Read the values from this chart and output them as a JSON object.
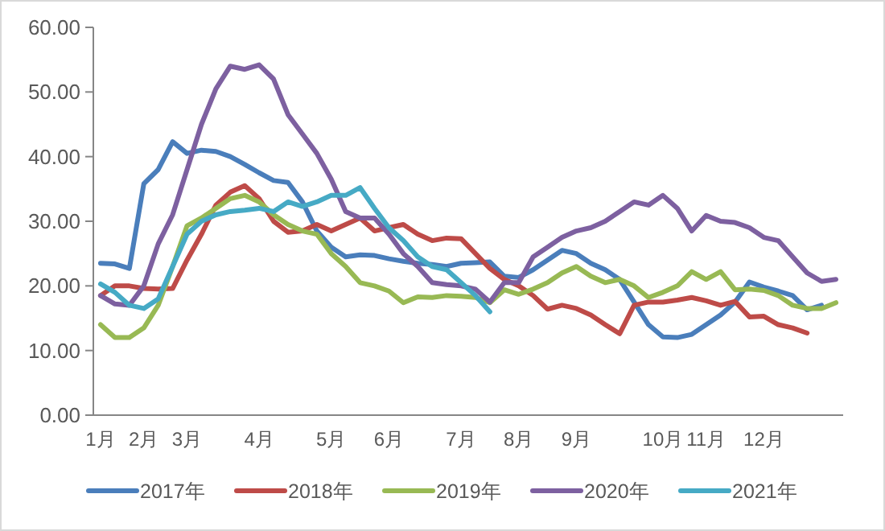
{
  "chart_data": {
    "type": "line",
    "categories": [
      "1月",
      null,
      null,
      "2月",
      null,
      null,
      "3月",
      null,
      null,
      null,
      null,
      "4月",
      null,
      null,
      null,
      null,
      "5月",
      null,
      null,
      null,
      "6月",
      null,
      null,
      null,
      null,
      "7月",
      null,
      null,
      null,
      "8月",
      null,
      null,
      null,
      "9月",
      null,
      null,
      null,
      null,
      null,
      "10月",
      null,
      null,
      "11月",
      null,
      null,
      null,
      "12月",
      null,
      null,
      null,
      null,
      null
    ],
    "series": [
      {
        "name": "2017年",
        "color": "#4a7ebb",
        "values": [
          23.5,
          23.4,
          22.7,
          35.8,
          38,
          42.3,
          40.5,
          41,
          40.8,
          40,
          38.8,
          37.5,
          36.3,
          36,
          33,
          28.5,
          26,
          24.5,
          24.8,
          24.7,
          24.2,
          23.8,
          23.5,
          23.3,
          23,
          23.5,
          23.6,
          23.7,
          21.5,
          21.3,
          22.5,
          24,
          25.5,
          25,
          23.5,
          22.5,
          21,
          17.5,
          14,
          12.1,
          12,
          12.5,
          14,
          15.5,
          17.5,
          20.6,
          19.8,
          19.2,
          18.5,
          16.3,
          17,
          null
        ]
      },
      {
        "name": "2018年",
        "color": "#be4b48",
        "values": [
          18.5,
          20,
          20,
          19.6,
          19.5,
          19.6,
          24,
          28,
          32.5,
          34.5,
          35.5,
          33.5,
          30,
          28.3,
          28.5,
          29.5,
          28.5,
          29.5,
          30.5,
          28.5,
          29,
          29.5,
          28,
          27,
          27.4,
          27.3,
          25,
          22.7,
          21,
          20,
          18.5,
          16.4,
          17,
          16.5,
          15.5,
          14,
          12.6,
          17,
          17.5,
          17.5,
          17.8,
          18.2,
          17.7,
          17,
          17.6,
          15.2,
          15.3,
          14,
          13.5,
          12.7,
          null,
          null
        ]
      },
      {
        "name": "2019年",
        "color": "#98b954",
        "values": [
          14,
          12,
          12,
          13.5,
          17,
          23,
          29.3,
          30.5,
          32,
          33.5,
          34,
          33,
          31,
          29.5,
          28.5,
          28,
          25,
          23,
          20.5,
          20,
          19.2,
          17.4,
          18.3,
          18.2,
          18.5,
          18.4,
          18.2,
          17.4,
          19.4,
          18.7,
          19.5,
          20.5,
          22,
          23,
          21.5,
          20.5,
          21,
          20,
          18.2,
          19,
          20,
          22.2,
          21,
          22.2,
          19.4,
          19.5,
          19.3,
          18.5,
          17,
          16.5,
          16.5,
          17.4
        ]
      },
      {
        "name": "2020年",
        "color": "#7d60a0",
        "values": [
          18.5,
          17.2,
          17,
          20,
          26.5,
          31,
          38,
          45,
          50.5,
          54,
          53.5,
          54.2,
          52,
          46.5,
          43.5,
          40.5,
          36.5,
          31.5,
          30.5,
          30.5,
          28,
          25,
          23,
          20.5,
          20.2,
          20,
          19.5,
          17.5,
          20.5,
          20.5,
          24.5,
          26,
          27.5,
          28.5,
          29,
          30,
          31.5,
          33,
          32.5,
          34,
          32,
          28.5,
          30.9,
          30,
          29.8,
          29,
          27.5,
          27,
          24.5,
          22,
          20.7,
          21
        ]
      },
      {
        "name": "2021年",
        "color": "#46aac5",
        "values": [
          20.3,
          19,
          17,
          16.5,
          18,
          23,
          28,
          30,
          31,
          31.5,
          31.7,
          32,
          31.5,
          33,
          32.3,
          33,
          34,
          34,
          35.2,
          32,
          29,
          27,
          24.5,
          23,
          22.5,
          20.5,
          18.5,
          16,
          null,
          null,
          null,
          null,
          null,
          null,
          null,
          null,
          null,
          null,
          null,
          null,
          null,
          null,
          null,
          null,
          null,
          null,
          null,
          null,
          null,
          null,
          null,
          null
        ]
      }
    ],
    "ylim": [
      0,
      60
    ],
    "yticks": [
      {
        "value": 0,
        "label": "0.00"
      },
      {
        "value": 10,
        "label": "10.00"
      },
      {
        "value": 20,
        "label": "20.00"
      },
      {
        "value": 30,
        "label": "30.00"
      },
      {
        "value": 40,
        "label": "40.00"
      },
      {
        "value": 50,
        "label": "50.00"
      },
      {
        "value": 60,
        "label": "60.00"
      }
    ],
    "legend": "bottom",
    "marker": "none",
    "line_style": "solid"
  }
}
